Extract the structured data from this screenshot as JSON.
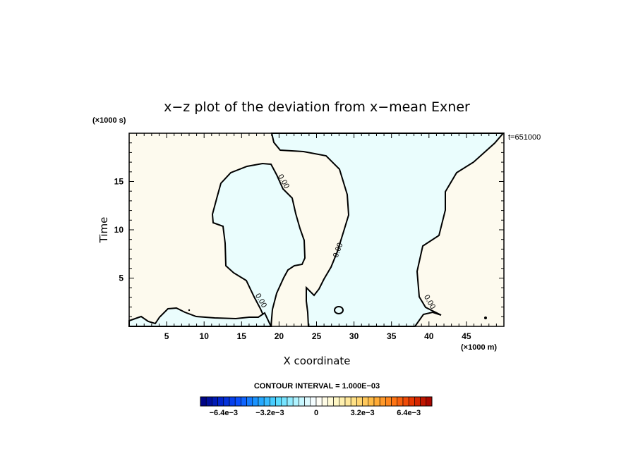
{
  "chart_data": {
    "type": "contour",
    "title": "x−z plot of the deviation from x−mean Exner",
    "xlabel": "X coordinate",
    "ylabel": "Time",
    "x_unit": "(×1000 m)",
    "y_unit": "(×1000 s)",
    "time_stamp": "t=651000",
    "xlim": [
      0,
      50
    ],
    "ylim": [
      0,
      20
    ],
    "x_ticks": [
      5,
      10,
      15,
      20,
      25,
      30,
      35,
      40,
      45
    ],
    "y_ticks": [
      5,
      10,
      15
    ],
    "contour_interval_text": "CONTOUR INTERVAL = 1.000E−03",
    "contour_level_labels": [
      "0.00",
      "0.00",
      "0.00",
      "0.00"
    ],
    "colorbar": {
      "labels": [
        "−6.4e−3",
        "−3.2e−3",
        "0",
        "3.2e−3",
        "6.4e−3"
      ],
      "label_values": [
        -0.0064,
        -0.0032,
        0,
        0.0032,
        0.0064
      ],
      "range": [
        -0.008,
        0.008
      ],
      "n_bins": 40,
      "colors": [
        "#00007a",
        "#0022c8",
        "#0a50ff",
        "#1ea0ff",
        "#55dcff",
        "#b4f4ff",
        "#ffffff",
        "#fff8c8",
        "#ffe082",
        "#ffb43c",
        "#ff7814",
        "#e63200",
        "#a00000"
      ]
    },
    "fill_colors": {
      "positive": "#fdfaee",
      "negative": "#eafdfd"
    },
    "grid": false
  }
}
